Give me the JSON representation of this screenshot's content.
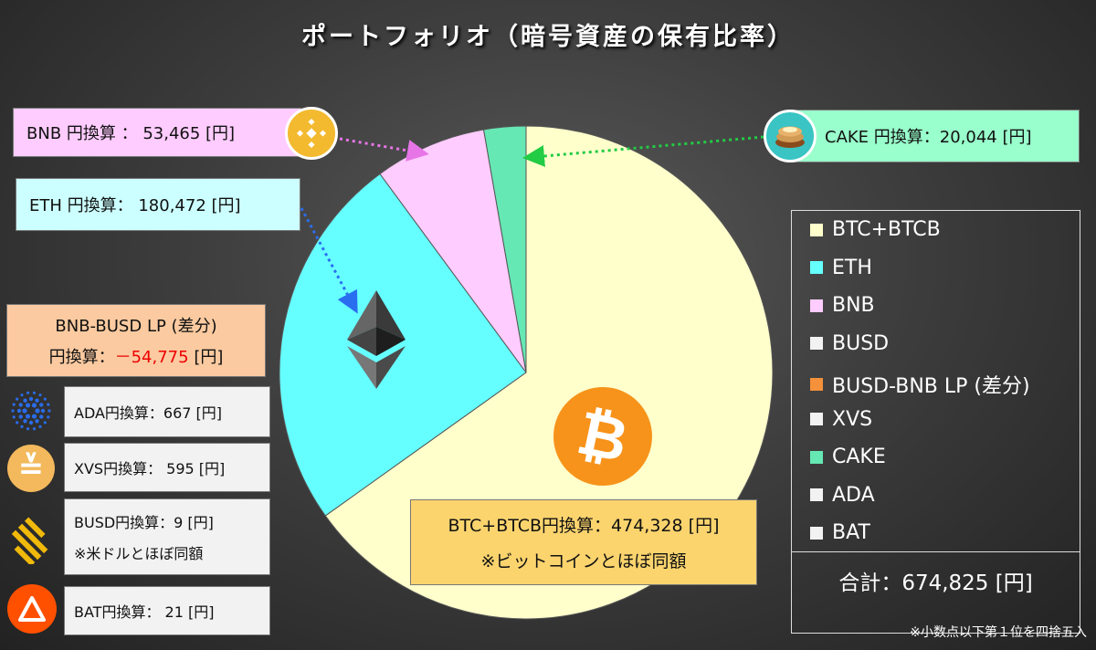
{
  "title": "ポートフォリオ（暗号資産の保有比率）",
  "chart_data": {
    "type": "pie",
    "title": "ポートフォリオ（暗号資産の保有比率）",
    "unit": "円",
    "start_angle": "12 o'clock, clockwise",
    "slices": [
      {
        "label": "BTC+BTCB",
        "value": 474328,
        "color": "#ffffcc"
      },
      {
        "label": "ETH",
        "value": 180472,
        "color": "#66ffff"
      },
      {
        "label": "BNB",
        "value": 53465,
        "color": "#ffccff"
      },
      {
        "label": "CAKE",
        "value": 20044,
        "color": "#66e8b4"
      }
    ],
    "legend": [
      {
        "label": "BTC+BTCB",
        "color": "#ffffcc"
      },
      {
        "label": "ETH",
        "color": "#66ffff"
      },
      {
        "label": "BNB",
        "color": "#ffccff"
      },
      {
        "label": "BUSD",
        "color": "#f2f2f2"
      },
      {
        "label": "BUSD-BNB LP (差分)",
        "color": "#f4913a"
      },
      {
        "label": "XVS",
        "color": "#f2f2f2"
      },
      {
        "label": "CAKE",
        "color": "#66e8b4"
      },
      {
        "label": "ADA",
        "color": "#f2f2f2"
      },
      {
        "label": "BAT",
        "color": "#f2f2f2"
      }
    ],
    "legend_position": "right",
    "total": "合計：674,825 [円]",
    "footnote": "※小数点以下第１位を四捨五入"
  },
  "labels": {
    "bnb": "BNB 円換算 ：  53,465 [円]",
    "eth": "ETH 円換算：  180,472 [円]",
    "cake": "CAKE 円換算：20,044 [円]",
    "lp_line1": "BNB-BUSD LP (差分)",
    "lp_line2_prefix": "円換算：",
    "lp_line2_value": "－54,775",
    "lp_line2_suffix": " [円]",
    "ada": "ADA円換算：667 [円]",
    "xvs": "XVS円換算：  595 [円]",
    "busd_line1": "BUSD円換算：9 [円]",
    "busd_line2": "※米ドルとほぼ同額",
    "bat": "BAT円換算：   21 [円]",
    "btc_line1": "BTC+BTCB円換算：474,328 [円]",
    "btc_line2": "※ビットコインとほぼ同額"
  },
  "colors": {
    "btc_box": "#fbd46e",
    "lp_box": "#fbcaa0",
    "coin_btc": "#f7931a",
    "coin_bnb": "#f3ba2f",
    "coin_xvs": "#f3b95c",
    "coin_busd": "#f0b90b",
    "coin_bat": "#ff5000",
    "coin_ada": "#0033ad",
    "arrow_bnb": "#e875e8",
    "arrow_cake": "#22cc44",
    "arrow_eth": "#2a6ef0"
  },
  "icons": [
    "bnb-icon",
    "cake-icon",
    "ethereum-icon",
    "bitcoin-icon",
    "cardano-icon",
    "venus-icon",
    "busd-icon",
    "bat-icon"
  ]
}
